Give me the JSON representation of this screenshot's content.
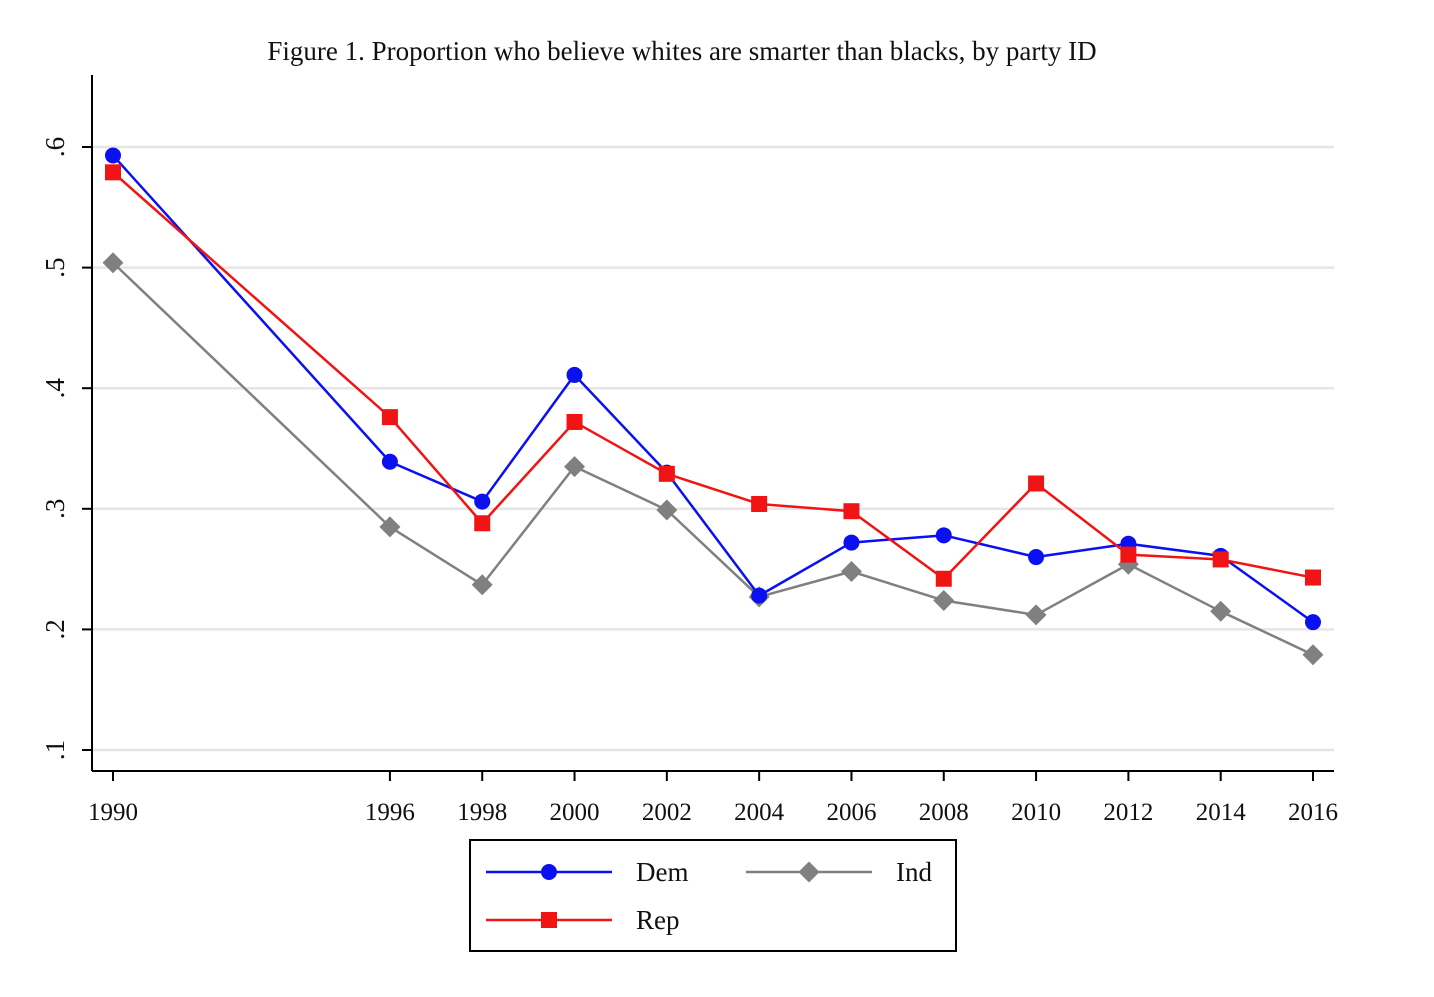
{
  "chart_data": {
    "type": "line",
    "title": "Figure 1. Proportion who believe whites are smarter than blacks, by party ID",
    "xlabel": "",
    "ylabel": "",
    "x": [
      1990,
      1996,
      1998,
      2000,
      2002,
      2004,
      2006,
      2008,
      2010,
      2012,
      2014,
      2016
    ],
    "x_tick_labels": [
      "1990",
      "1996",
      "1998",
      "2000",
      "2002",
      "2004",
      "2006",
      "2008",
      "2010",
      "2012",
      "2014",
      "2016"
    ],
    "xlim": [
      1989.5,
      2016.5
    ],
    "ylim": [
      0.083,
      0.66
    ],
    "y_ticks": [
      0.1,
      0.2,
      0.3,
      0.4,
      0.5,
      0.6
    ],
    "y_tick_labels": [
      ".1",
      ".2",
      ".3",
      ".4",
      ".5",
      ".6"
    ],
    "y_tick_labels_rotated": true,
    "grid": "horizontal",
    "legend_position": "bottom",
    "series": [
      {
        "name": "Dem",
        "color": "#0a10f0",
        "marker": "circle",
        "values": [
          0.593,
          0.339,
          0.306,
          0.411,
          0.33,
          0.228,
          0.272,
          0.278,
          0.26,
          0.271,
          0.261,
          0.206
        ]
      },
      {
        "name": "Ind",
        "color": "#808080",
        "marker": "diamond",
        "values": [
          0.504,
          0.285,
          0.237,
          0.335,
          0.299,
          0.227,
          0.248,
          0.224,
          0.212,
          0.254,
          0.215,
          0.179
        ]
      },
      {
        "name": "Rep",
        "color": "#f01414",
        "marker": "square",
        "values": [
          0.579,
          0.376,
          0.288,
          0.372,
          0.329,
          0.304,
          0.298,
          0.242,
          0.321,
          0.262,
          0.258,
          0.243
        ]
      }
    ]
  }
}
